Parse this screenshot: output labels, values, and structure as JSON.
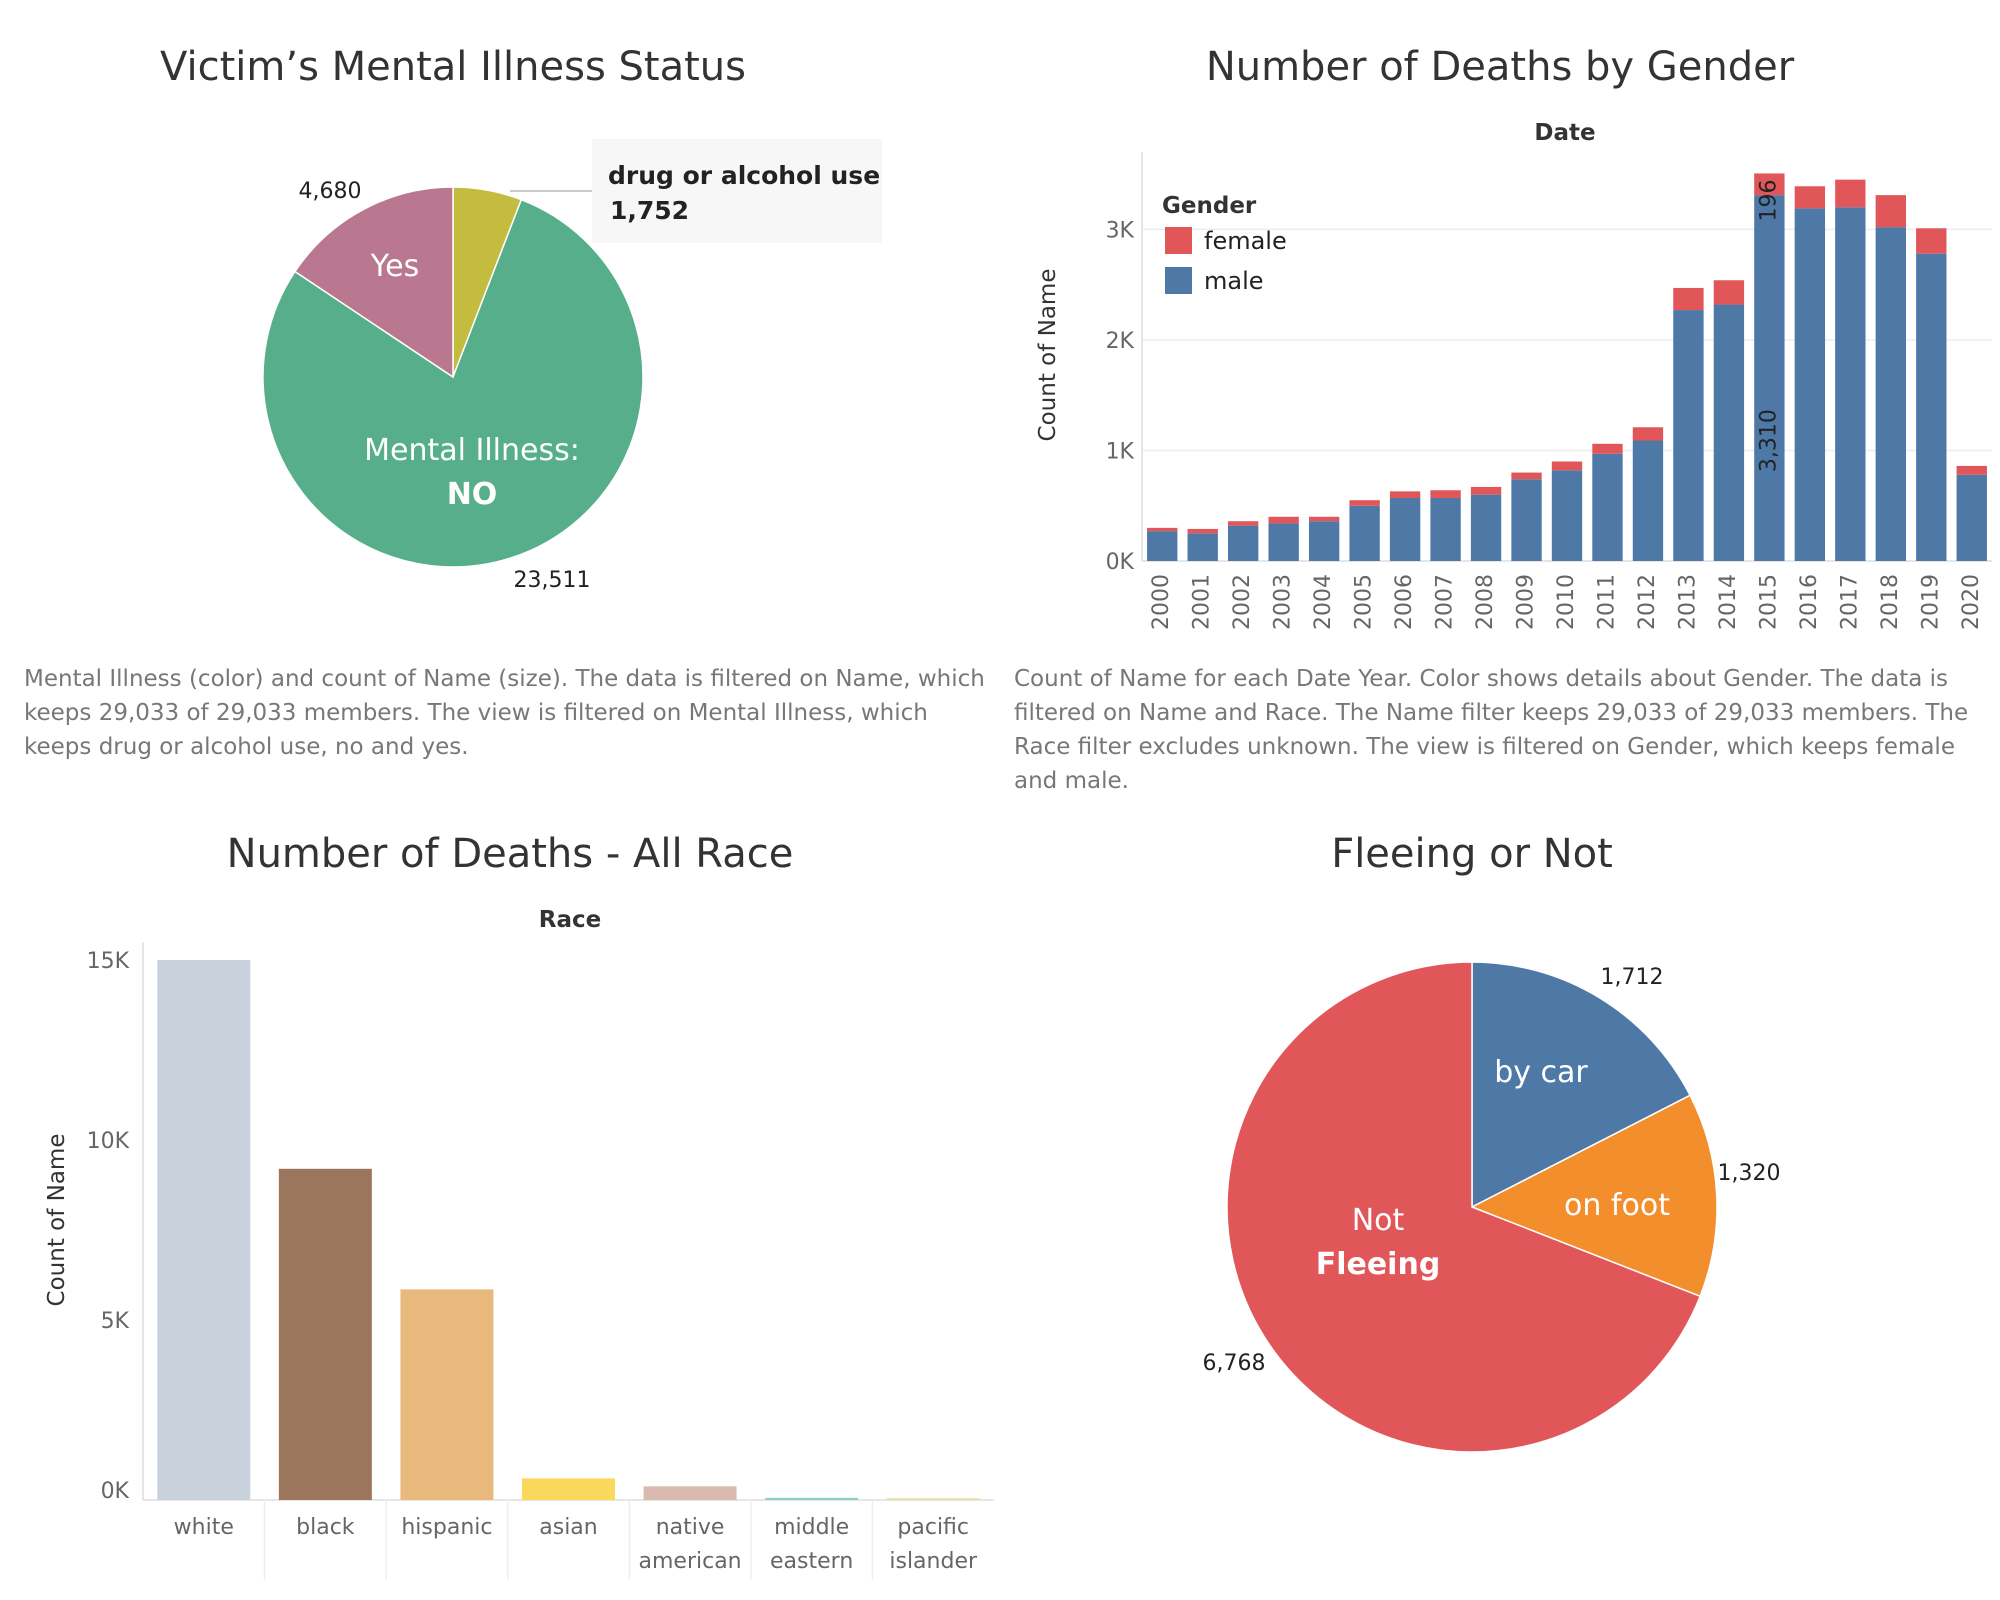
{
  "captions": {
    "mental_illness": "Mental Illness (color) and count of Name (size). The data is filtered on Name, which keeps 29,033 of 29,033 members. The view is filtered on Mental Illness, which keeps drug or alcohol use, no and yes.",
    "gender": "Count of Name for each Date Year.  Color shows details about Gender. The data is filtered on Name and Race. The Name filter keeps 29,033 of 29,033 members. The Race filter excludes unknown. The view is filtered on Gender, which keeps female and male."
  },
  "chart_data": [
    {
      "type": "pie",
      "title": "Victim’s Mental Illness Status",
      "slices": [
        {
          "label": "drug or alcohol use",
          "value": 1752,
          "value_label": "1,752",
          "color": "#c4bc3e",
          "inner": ""
        },
        {
          "label": "Mental Illness: NO",
          "value": 23511,
          "value_label": "23,511",
          "color": "#57ae8a",
          "inner": "Mental Illness:",
          "inner2": "NO"
        },
        {
          "label": "Yes",
          "value": 4680,
          "value_label": "4,680",
          "color": "#b9788f",
          "inner": "Yes"
        }
      ],
      "tooltip": {
        "label": "drug or alcohol use",
        "value": "1,752"
      }
    },
    {
      "type": "bar",
      "stacked": true,
      "title": "Number of Deaths by Gender",
      "xlabel": "Date",
      "ylabel": "Count of Name",
      "ylim": [
        0,
        3700
      ],
      "yticks": [
        0,
        1000,
        2000,
        3000
      ],
      "ytick_labels": [
        "0K",
        "1K",
        "2K",
        "3K"
      ],
      "legend": {
        "title": "Gender",
        "position": "top-left"
      },
      "categories": [
        "2000",
        "2001",
        "2002",
        "2003",
        "2004",
        "2005",
        "2006",
        "2007",
        "2008",
        "2009",
        "2010",
        "2011",
        "2012",
        "2013",
        "2014",
        "2015",
        "2016",
        "2017",
        "2018",
        "2019",
        "2020"
      ],
      "series": [
        {
          "name": "male",
          "color": "#4e79a7",
          "values": [
            270,
            250,
            320,
            340,
            360,
            500,
            570,
            570,
            600,
            740,
            820,
            970,
            1090,
            2270,
            2320,
            3310,
            3190,
            3200,
            3020,
            2780,
            780
          ]
        },
        {
          "name": "female",
          "color": "#e15759",
          "values": [
            30,
            40,
            40,
            60,
            40,
            50,
            60,
            70,
            70,
            60,
            80,
            90,
            120,
            200,
            220,
            196,
            200,
            250,
            290,
            230,
            80
          ]
        }
      ],
      "annotations": [
        {
          "category": "2015",
          "series": "female",
          "text": "196"
        },
        {
          "category": "2015",
          "series": "male",
          "text": "3,310"
        }
      ]
    },
    {
      "type": "bar",
      "title": "Number of Deaths - All Race",
      "xlabel": "Race",
      "ylabel": "Count of Name",
      "ylim": [
        0,
        15500
      ],
      "yticks": [
        0,
        5000,
        10000,
        15000
      ],
      "ytick_labels": [
        "0K",
        "5K",
        "10K",
        "15K"
      ],
      "categories": [
        [
          "white"
        ],
        [
          "black"
        ],
        [
          "hispanic"
        ],
        [
          "asian"
        ],
        [
          "native",
          "american"
        ],
        [
          "middle",
          "eastern"
        ],
        [
          "pacific",
          "islander"
        ]
      ],
      "values": [
        15000,
        9200,
        5850,
        600,
        380,
        60,
        50
      ],
      "colors": [
        "#c9d1dc",
        "#9b765c",
        "#e8b87d",
        "#fad85c",
        "#dbb9b0",
        "#8fd0c9",
        "#e9e0a5"
      ]
    },
    {
      "type": "pie",
      "title": "Fleeing or Not",
      "slices": [
        {
          "label": "by car",
          "value": 1712,
          "value_label": "1,712",
          "color": "#4e79a7",
          "inner": "by car"
        },
        {
          "label": "on foot",
          "value": 1320,
          "value_label": "1,320",
          "color": "#f28e2b",
          "inner": "on foot"
        },
        {
          "label": "Not Fleeing",
          "value": 6768,
          "value_label": "6,768",
          "color": "#e15759",
          "inner": "Not",
          "inner2": "Fleeing"
        }
      ]
    }
  ]
}
